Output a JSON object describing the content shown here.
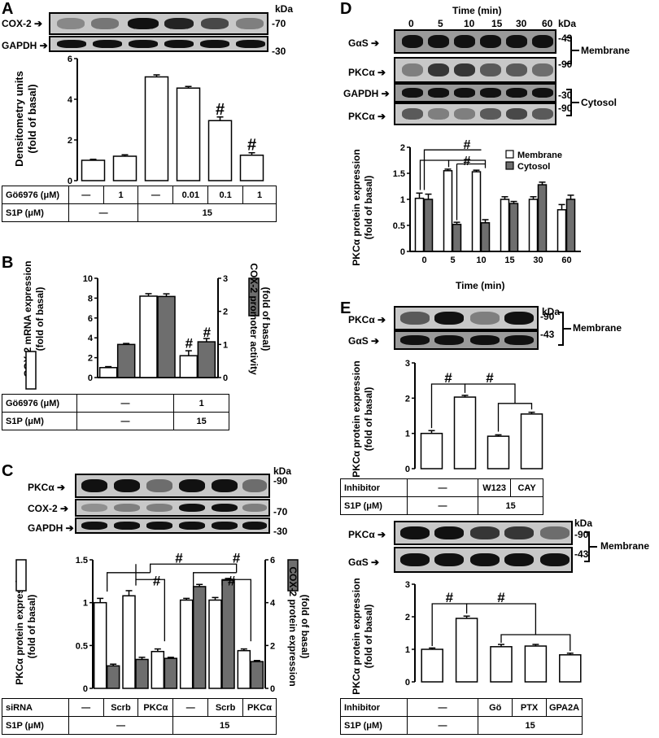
{
  "panels": {
    "A": {
      "label": "A",
      "blots": [
        {
          "name": "COX-2",
          "kda": "70"
        },
        {
          "name": "GAPDH",
          "kda": "30"
        }
      ],
      "kda_header": "kDa",
      "ylabel_line1": "Densitometry units",
      "ylabel_line2": "(fold of basal)",
      "rows": [
        {
          "label": "Gö6976 (μM)",
          "cells": [
            "—",
            "1",
            "—",
            "0.01",
            "0.1",
            "1"
          ]
        },
        {
          "label": "S1P (μM)",
          "cells": [
            "—",
            "15"
          ]
        }
      ]
    },
    "B": {
      "label": "B",
      "ylabel_left1": "COX-2  mRNA expression",
      "ylabel_left2": "(fold of basal)",
      "ylabel_right1": "COX-2 promoter activity",
      "ylabel_right2": "(fold of basal)",
      "rows": [
        {
          "label": "Gö6976 (μM)",
          "cells": [
            "—",
            "1"
          ]
        },
        {
          "label": "S1P (μM)",
          "cells": [
            "—",
            "15"
          ]
        }
      ]
    },
    "C": {
      "label": "C",
      "blots": [
        {
          "name": "PKCα",
          "kda": "90"
        },
        {
          "name": "COX-2",
          "kda": "70"
        },
        {
          "name": "GAPDH",
          "kda": "30"
        }
      ],
      "kda_header": "kDa",
      "ylabel_left1": "PKCα  protein expression",
      "ylabel_left2": "(fold of basal)",
      "ylabel_right1": "COX-2 protein expression",
      "ylabel_right2": "(fold of basal)",
      "rows": [
        {
          "label": "siRNA",
          "cells": [
            "—",
            "Scrb",
            "PKCα",
            "—",
            "Scrb",
            "PKCα"
          ]
        },
        {
          "label": "S1P (μM)",
          "cells": [
            "—",
            "15"
          ]
        }
      ]
    },
    "D": {
      "label": "D",
      "time_header": "Time (min)",
      "time_points": [
        "0",
        "5",
        "10",
        "15",
        "30",
        "60"
      ],
      "kda_header": "kDa",
      "blots": [
        {
          "name": "GαS",
          "kda": "43"
        },
        {
          "name": "PKCα",
          "kda": "90"
        },
        {
          "name": "GAPDH",
          "kda": "30"
        },
        {
          "name": "PKCα",
          "kda": "90"
        }
      ],
      "fractions": [
        "Membrane",
        "Cytosol"
      ],
      "ylabel1": "PKCα  protein expression",
      "ylabel2": "(fold of basal)",
      "xlabel": "Time (min)"
    },
    "E": {
      "label": "E",
      "kda_header": "kDa",
      "top_blots": [
        {
          "name": "PKCα",
          "kda": "90"
        },
        {
          "name": "GαS",
          "kda": "43"
        }
      ],
      "bottom_blots": [
        {
          "name": "PKCα",
          "kda": "90"
        },
        {
          "name": "GαS",
          "kda": "43"
        }
      ],
      "fraction": "Membrane",
      "ylabel1": "PKCα  protein expression",
      "ylabel2": "(fold of basal)",
      "rows_top": [
        {
          "label": "Inhibitor",
          "cells": [
            "—",
            "W123",
            "CAY"
          ]
        },
        {
          "label": "S1P (μM)",
          "cells": [
            "—",
            "15"
          ]
        }
      ],
      "rows_bottom": [
        {
          "label": "Inhibitor",
          "cells": [
            "—",
            "Gö",
            "PTX",
            "GPA2A"
          ]
        },
        {
          "label": "S1P (μM)",
          "cells": [
            "—",
            "15"
          ]
        }
      ]
    }
  },
  "chart_data": [
    {
      "id": "A",
      "type": "bar",
      "categories": [
        "1",
        "2",
        "3",
        "4",
        "5",
        "6"
      ],
      "series": [
        {
          "values": [
            1.0,
            1.2,
            5.1,
            4.55,
            2.95,
            1.25
          ],
          "errors": [
            0.05,
            0.07,
            0.1,
            0.08,
            0.18,
            0.12
          ]
        }
      ],
      "ylim": [
        0,
        6
      ],
      "yticks": [
        0,
        2,
        4,
        6
      ],
      "ylabel": "Densitometry units (fold of basal)",
      "annotations": [
        "#",
        "#"
      ],
      "color": "#ffffff"
    },
    {
      "id": "B",
      "type": "bar",
      "categories": [
        "1",
        "2",
        "3"
      ],
      "series": [
        {
          "name": "COX-2 mRNA expression (fold of basal)",
          "values": [
            1.0,
            8.2,
            2.2
          ],
          "errors": [
            0.1,
            0.25,
            0.5
          ],
          "color": "#ffffff"
        },
        {
          "name": "COX-2 promoter activity (fold of basal)",
          "values": [
            1.0,
            2.45,
            1.08
          ],
          "errors": [
            0.03,
            0.08,
            0.1
          ],
          "color": "#6e6e6e",
          "axis": "right"
        }
      ],
      "ylim": [
        0,
        10
      ],
      "yticks": [
        0,
        2,
        4,
        6,
        8,
        10
      ],
      "ylim_right": [
        0,
        3
      ],
      "yticks_right": [
        0,
        1,
        2,
        3
      ],
      "annotations": [
        "#",
        "#"
      ]
    },
    {
      "id": "C",
      "type": "bar",
      "categories": [
        "1",
        "2",
        "3",
        "4",
        "5",
        "6"
      ],
      "series": [
        {
          "name": "PKCα protein expression (fold of basal)",
          "values": [
            1.0,
            1.08,
            0.43,
            1.03,
            1.03,
            0.44
          ],
          "errors": [
            0.05,
            0.06,
            0.03,
            0.02,
            0.03,
            0.02
          ],
          "color": "#ffffff"
        },
        {
          "name": "COX-2 protein expression (fold of basal)",
          "values": [
            1.05,
            1.35,
            1.4,
            4.75,
            5.05,
            1.25
          ],
          "errors": [
            0.08,
            0.1,
            0.05,
            0.1,
            0.08,
            0.05
          ],
          "color": "#6e6e6e",
          "axis": "right"
        }
      ],
      "ylim": [
        0,
        1.5
      ],
      "yticks": [
        0,
        0.5,
        1.0,
        1.5
      ],
      "ylim_right": [
        0,
        6
      ],
      "yticks_right": [
        0,
        2,
        4,
        6
      ],
      "annotations": [
        "#",
        "#",
        "#",
        "#"
      ]
    },
    {
      "id": "D",
      "type": "bar",
      "categories": [
        "0",
        "5",
        "10",
        "15",
        "30",
        "60"
      ],
      "series": [
        {
          "name": "Membrane",
          "values": [
            1.02,
            1.55,
            1.53,
            1.0,
            1.0,
            0.8
          ],
          "errors": [
            0.1,
            0.03,
            0.03,
            0.05,
            0.05,
            0.1
          ],
          "color": "#ffffff"
        },
        {
          "name": "Cytosol",
          "values": [
            1.0,
            0.52,
            0.55,
            0.92,
            1.28,
            1.0
          ],
          "errors": [
            0.1,
            0.04,
            0.06,
            0.04,
            0.05,
            0.08
          ],
          "color": "#6e6e6e"
        }
      ],
      "xlabel": "Time (min)",
      "ylim": [
        0,
        2.0
      ],
      "yticks": [
        0,
        0.5,
        1.0,
        1.5,
        2.0
      ],
      "legend": "top-right",
      "annotations": [
        "#",
        "#"
      ]
    },
    {
      "id": "E-top",
      "type": "bar",
      "categories": [
        "1",
        "2",
        "3",
        "4"
      ],
      "series": [
        {
          "values": [
            1.0,
            2.03,
            0.92,
            1.55
          ],
          "errors": [
            0.08,
            0.05,
            0.04,
            0.05
          ]
        }
      ],
      "ylim": [
        0,
        3
      ],
      "yticks": [
        0,
        1,
        2,
        3
      ],
      "annotations": [
        "#",
        "#"
      ],
      "color": "#ffffff"
    },
    {
      "id": "E-bottom",
      "type": "bar",
      "categories": [
        "1",
        "2",
        "3",
        "4",
        "5"
      ],
      "series": [
        {
          "values": [
            1.0,
            1.95,
            1.08,
            1.1,
            0.83
          ],
          "errors": [
            0.04,
            0.07,
            0.07,
            0.05,
            0.05
          ]
        }
      ],
      "ylim": [
        0,
        3
      ],
      "yticks": [
        0,
        1,
        2,
        3
      ],
      "annotations": [
        "#",
        "#"
      ],
      "color": "#ffffff"
    }
  ]
}
